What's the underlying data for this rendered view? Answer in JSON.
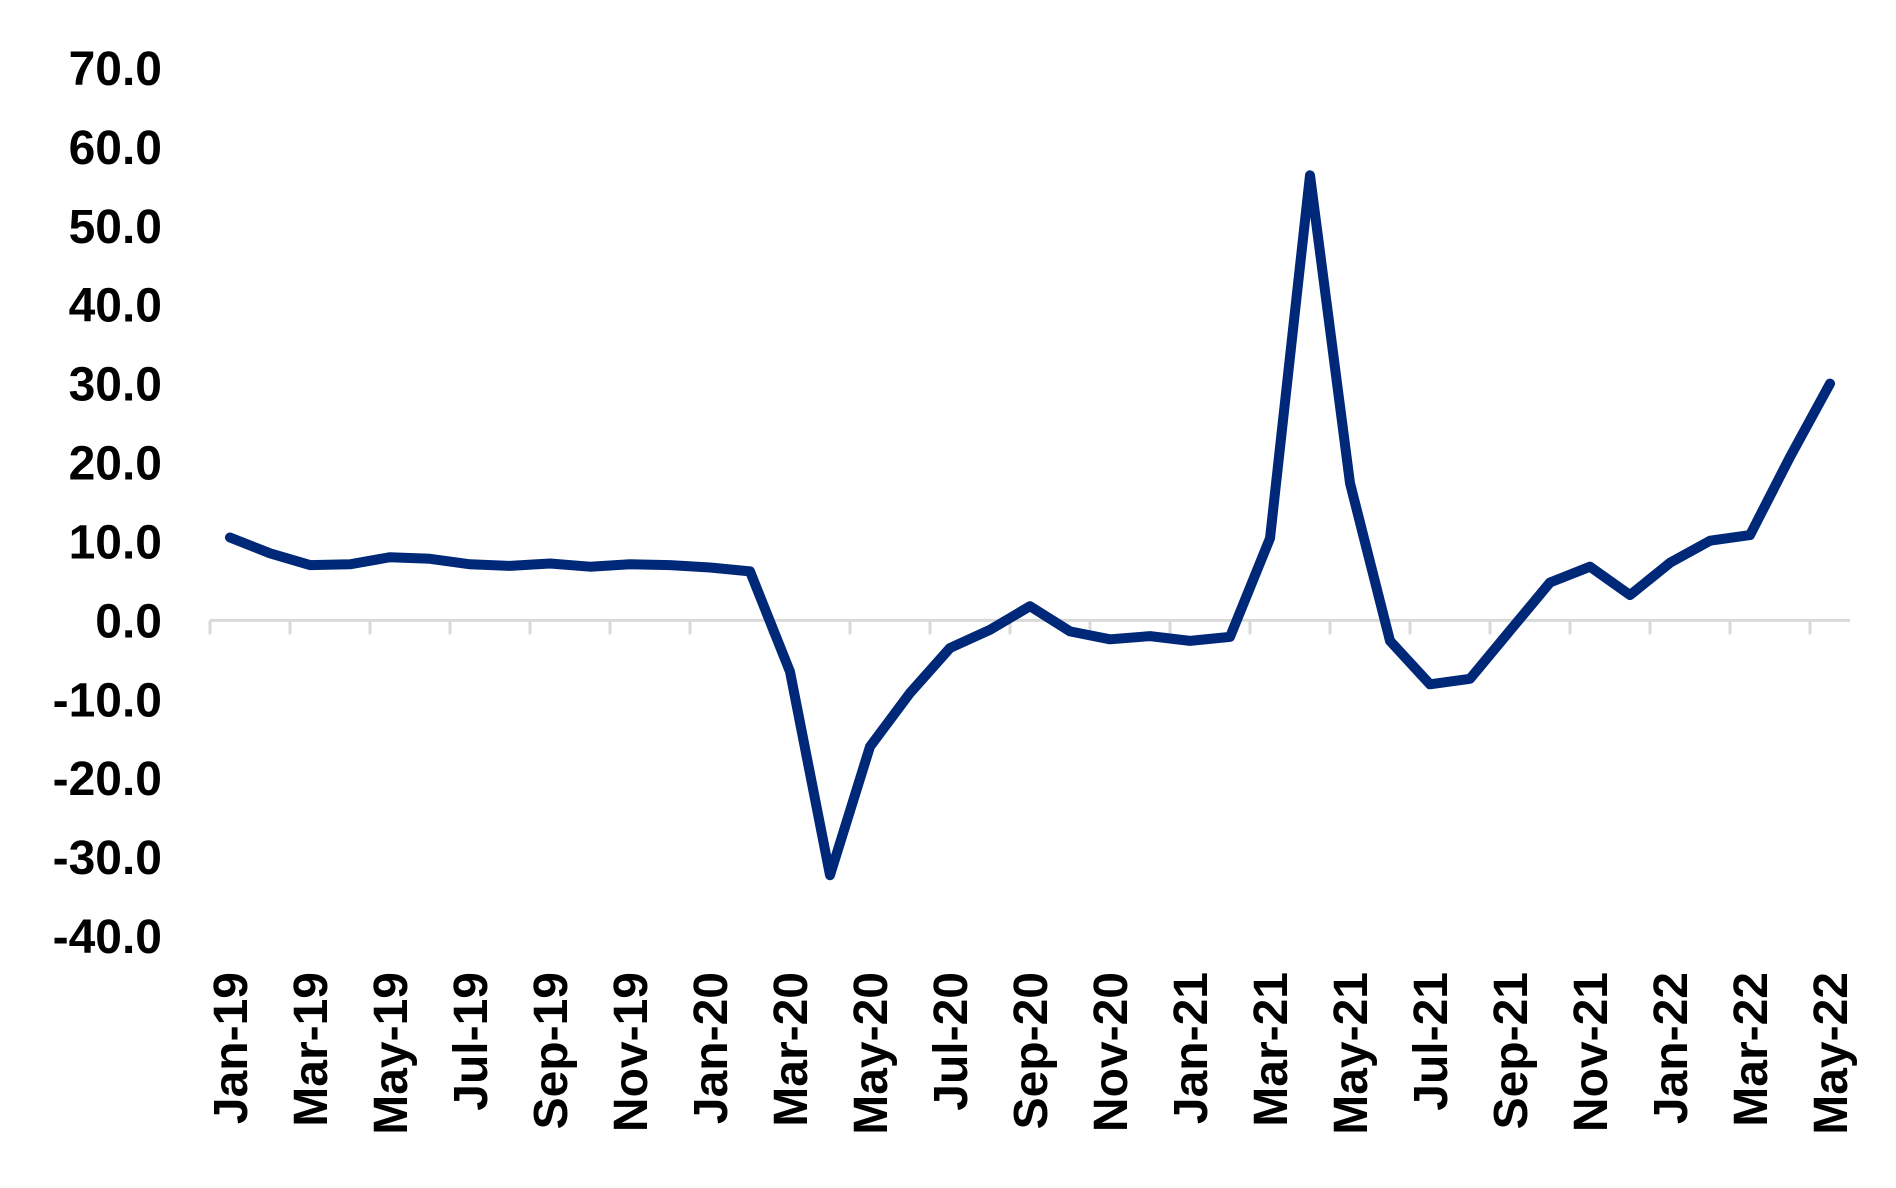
{
  "chart_data": {
    "type": "line",
    "title": "",
    "xlabel": "",
    "ylabel": "",
    "ylim": [
      -40,
      70
    ],
    "y_ticks": [
      "70.0",
      "60.0",
      "50.0",
      "40.0",
      "30.0",
      "20.0",
      "10.0",
      "0.0",
      "-10.0",
      "-20.0",
      "-30.0",
      "-40.0"
    ],
    "x_tick_labels": [
      "Jan-19",
      "Mar-19",
      "May-19",
      "Jul-19",
      "Sep-19",
      "Nov-19",
      "Jan-20",
      "Mar-20",
      "May-20",
      "Jul-20",
      "Sep-20",
      "Nov-20",
      "Jan-21",
      "Mar-21",
      "May-21",
      "Jul-21",
      "Sep-21",
      "Nov-21",
      "Jan-22",
      "Mar-22",
      "May-22"
    ],
    "categories": [
      "Jan-19",
      "Feb-19",
      "Mar-19",
      "Apr-19",
      "May-19",
      "Jun-19",
      "Jul-19",
      "Aug-19",
      "Sep-19",
      "Oct-19",
      "Nov-19",
      "Dec-19",
      "Jan-20",
      "Feb-20",
      "Mar-20",
      "Apr-20",
      "May-20",
      "Jun-20",
      "Jul-20",
      "Aug-20",
      "Sep-20",
      "Oct-20",
      "Nov-20",
      "Dec-20",
      "Jan-21",
      "Feb-21",
      "Mar-21",
      "Apr-21",
      "May-21",
      "Jun-21",
      "Jul-21",
      "Aug-21",
      "Sep-21",
      "Oct-21",
      "Nov-21",
      "Dec-21",
      "Jan-22",
      "Feb-22",
      "Mar-22",
      "Apr-22",
      "May-22"
    ],
    "series": [
      {
        "values": [
          10.5,
          8.5,
          7.0,
          7.1,
          8.0,
          7.8,
          7.1,
          6.9,
          7.2,
          6.8,
          7.1,
          7.0,
          6.7,
          6.2,
          -6.5,
          -32.3,
          -16.0,
          -9.2,
          -3.5,
          -1.2,
          1.8,
          -1.4,
          -2.4,
          -2.0,
          -2.6,
          -2.1,
          10.4,
          56.4,
          17.4,
          -2.6,
          -8.1,
          -7.4,
          -1.3,
          4.8,
          6.8,
          3.2,
          7.3,
          10.1,
          10.8,
          20.7,
          30.0
        ],
        "color": "#002878"
      }
    ],
    "grid": false,
    "legend": "none",
    "axis_color": "#d9d9d9"
  }
}
